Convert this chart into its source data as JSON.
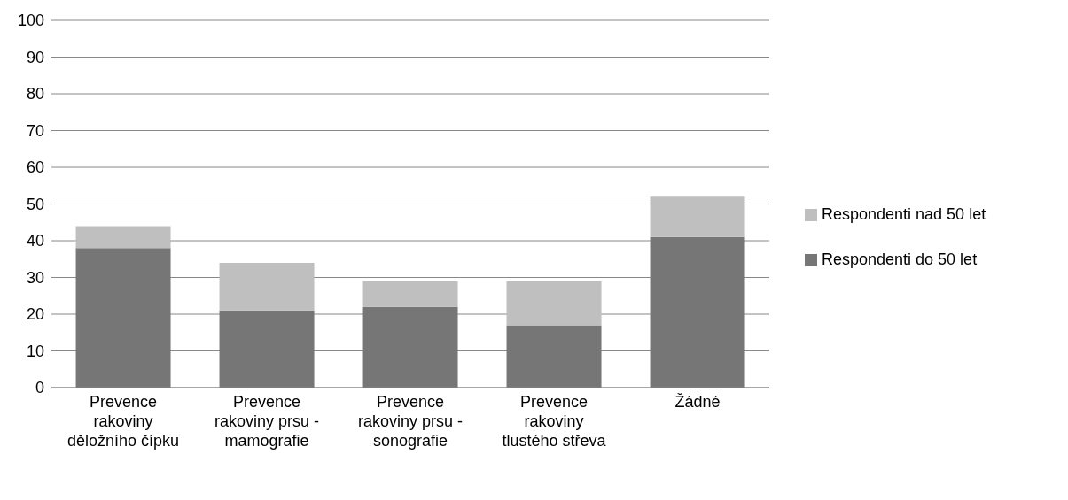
{
  "chart_data": {
    "type": "bar",
    "stacked": true,
    "categories": [
      "Prevence rakoviny děložního čípku",
      "Prevence rakoviny prsu - mamografie",
      "Prevence rakoviny prsu - sonografie",
      "Prevence rakoviny tlustého střeva",
      "Žádné"
    ],
    "series": [
      {
        "name": "Respondenti do 50 let",
        "color": "#767676",
        "values": [
          38,
          21,
          22,
          17,
          41
        ]
      },
      {
        "name": "Respondenti nad 50 let",
        "color": "#bfbfbf",
        "values": [
          6,
          13,
          7,
          12,
          11
        ]
      }
    ],
    "ylim": [
      0,
      100
    ],
    "yticks": [
      0,
      10,
      20,
      30,
      40,
      50,
      60,
      70,
      80,
      90,
      100
    ],
    "grid": "y",
    "legend": "right"
  }
}
